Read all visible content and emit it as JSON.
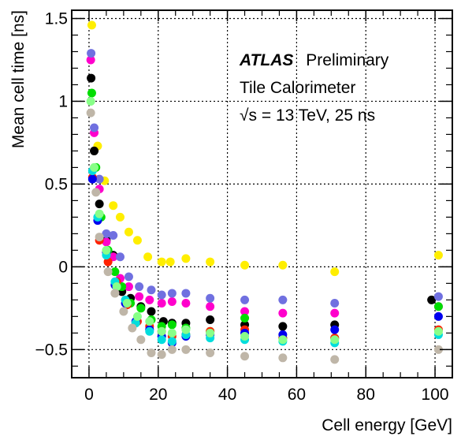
{
  "chart_data": {
    "type": "scatter",
    "xlabel": "Cell energy [GeV]",
    "ylabel": "Mean cell time [ns]",
    "xlim": [
      -5,
      105
    ],
    "ylim": [
      -0.67,
      1.55
    ],
    "x_ticks": [
      "0",
      "20",
      "40",
      "60",
      "80",
      "100"
    ],
    "y_ticks": [
      "−0.5",
      "0",
      "0.5",
      "1",
      "1.5"
    ],
    "grid": true,
    "annotations": {
      "experiment": "ATLAS",
      "status": "Preliminary",
      "detector": "Tile Calorimeter",
      "energy_prefix": "√s",
      "energy_rest": " = 13 TeV, 25 ns"
    },
    "series": [
      {
        "color": "#ffee00",
        "points": [
          [
            0.8,
            1.46
          ],
          [
            2.5,
            0.73
          ],
          [
            4.5,
            0.52
          ],
          [
            7,
            0.37
          ],
          [
            9,
            0.3
          ],
          [
            11.5,
            0.21
          ],
          [
            14,
            0.16
          ],
          [
            17,
            0.06
          ],
          [
            21,
            0.03
          ],
          [
            23.5,
            0.03
          ],
          [
            28,
            0.05
          ],
          [
            35,
            0.03
          ],
          [
            45,
            0.01
          ],
          [
            56,
            0.01
          ],
          [
            71,
            -0.03
          ],
          [
            101,
            0.07
          ]
        ]
      },
      {
        "color": "#000000",
        "points": [
          [
            0.6,
            1.14
          ],
          [
            1.5,
            0.7
          ],
          [
            3,
            0.38
          ],
          [
            5,
            0.16
          ],
          [
            7,
            0.07
          ],
          [
            9.5,
            -0.15
          ],
          [
            12,
            -0.19
          ],
          [
            15,
            -0.24
          ],
          [
            18,
            -0.27
          ],
          [
            21.5,
            -0.33
          ],
          [
            24,
            -0.34
          ],
          [
            28,
            -0.34
          ],
          [
            35,
            -0.32
          ],
          [
            45,
            -0.35
          ],
          [
            56,
            -0.36
          ],
          [
            71,
            -0.35
          ],
          [
            99,
            -0.2
          ]
        ]
      },
      {
        "color": "#ff00cc",
        "points": [
          [
            0.5,
            1.25
          ],
          [
            1.5,
            0.81
          ],
          [
            3,
            0.47
          ],
          [
            5,
            0.15
          ],
          [
            7,
            0.06
          ],
          [
            9,
            -0.07
          ],
          [
            11.5,
            -0.12
          ],
          [
            14.5,
            -0.18
          ],
          [
            17.5,
            -0.2
          ],
          [
            21,
            -0.22
          ],
          [
            24,
            -0.21
          ],
          [
            28,
            -0.22
          ],
          [
            35,
            -0.24
          ],
          [
            45,
            -0.27
          ],
          [
            56,
            -0.28
          ],
          [
            71,
            -0.28
          ],
          [
            101,
            -0.24
          ]
        ]
      },
      {
        "color": "#7070e0",
        "points": [
          [
            0.6,
            1.29
          ],
          [
            1.5,
            0.84
          ],
          [
            3,
            0.53
          ],
          [
            5,
            0.2
          ],
          [
            7,
            0.19
          ],
          [
            9,
            0.06
          ],
          [
            11.5,
            -0.06
          ],
          [
            14.5,
            -0.12
          ],
          [
            18,
            -0.14
          ],
          [
            21,
            -0.17
          ],
          [
            24,
            -0.16
          ],
          [
            28,
            -0.16
          ],
          [
            35,
            -0.19
          ],
          [
            45,
            -0.2
          ],
          [
            56,
            -0.2
          ],
          [
            71,
            -0.22
          ],
          [
            101,
            -0.18
          ]
        ]
      },
      {
        "color": "#00dd00",
        "points": [
          [
            0.8,
            1.05
          ],
          [
            2,
            0.6
          ],
          [
            3.5,
            0.3
          ],
          [
            5.5,
            0.1
          ],
          [
            7.5,
            -0.03
          ],
          [
            9.5,
            -0.12
          ],
          [
            12,
            -0.22
          ],
          [
            15,
            -0.25
          ],
          [
            18,
            -0.32
          ],
          [
            21,
            -0.36
          ],
          [
            24,
            -0.35
          ],
          [
            28,
            -0.37
          ],
          [
            35,
            -0.39
          ],
          [
            45,
            -0.31
          ],
          [
            56,
            -0.43
          ],
          [
            71,
            -0.43
          ],
          [
            101,
            -0.24
          ]
        ]
      },
      {
        "color": "#ff2200",
        "points": [
          [
            1,
            0.54
          ],
          [
            3,
            0.16
          ],
          [
            5.5,
            0.03
          ],
          [
            8,
            -0.09
          ],
          [
            11,
            -0.23
          ],
          [
            14,
            -0.33
          ],
          [
            17.5,
            -0.36
          ],
          [
            21,
            -0.39
          ],
          [
            24,
            -0.42
          ],
          [
            28,
            -0.41
          ],
          [
            35,
            -0.39
          ],
          [
            45,
            -0.38
          ],
          [
            56,
            -0.43
          ],
          [
            71,
            -0.43
          ],
          [
            101,
            -0.38
          ]
        ]
      },
      {
        "color": "#0000ee",
        "points": [
          [
            1,
            0.53
          ],
          [
            2.5,
            0.28
          ],
          [
            5,
            0.09
          ],
          [
            7.5,
            -0.11
          ],
          [
            10.5,
            -0.22
          ],
          [
            13.5,
            -0.33
          ],
          [
            17.5,
            -0.38
          ],
          [
            21,
            -0.42
          ],
          [
            24,
            -0.46
          ],
          [
            28,
            -0.42
          ],
          [
            35,
            -0.41
          ],
          [
            45,
            -0.4
          ],
          [
            56,
            -0.41
          ],
          [
            71,
            -0.38
          ],
          [
            101,
            -0.3
          ]
        ]
      },
      {
        "color": "#00dddd",
        "points": [
          [
            1,
            0.58
          ],
          [
            2.5,
            0.3
          ],
          [
            5,
            0.07
          ],
          [
            7.5,
            -0.09
          ],
          [
            10.5,
            -0.2
          ],
          [
            13.5,
            -0.34
          ],
          [
            17.5,
            -0.39
          ],
          [
            21,
            -0.44
          ],
          [
            24,
            -0.45
          ],
          [
            28,
            -0.41
          ],
          [
            35,
            -0.43
          ],
          [
            45,
            -0.44
          ],
          [
            56,
            -0.45
          ],
          [
            71,
            -0.46
          ],
          [
            101,
            -0.41
          ]
        ]
      },
      {
        "color": "#88ff88",
        "points": [
          [
            0.5,
            1.0
          ],
          [
            1.5,
            0.6
          ],
          [
            3,
            0.32
          ],
          [
            5,
            0.1
          ],
          [
            8,
            -0.12
          ],
          [
            11,
            -0.22
          ],
          [
            14,
            -0.3
          ],
          [
            17.5,
            -0.33
          ],
          [
            21,
            -0.39
          ],
          [
            24,
            -0.4
          ],
          [
            28,
            -0.38
          ],
          [
            35,
            -0.4
          ],
          [
            45,
            -0.42
          ],
          [
            56,
            -0.44
          ],
          [
            71,
            -0.44
          ],
          [
            101,
            -0.39
          ]
        ]
      },
      {
        "color": "#bfb6a8",
        "points": [
          [
            0.5,
            0.93
          ],
          [
            2,
            0.45
          ],
          [
            3,
            0.18
          ],
          [
            5.5,
            -0.03
          ],
          [
            7.5,
            -0.16
          ],
          [
            10,
            -0.27
          ],
          [
            12.5,
            -0.37
          ],
          [
            15,
            -0.44
          ],
          [
            18,
            -0.52
          ],
          [
            21,
            -0.53
          ],
          [
            24,
            -0.5
          ],
          [
            28,
            -0.5
          ],
          [
            35,
            -0.52
          ],
          [
            45,
            -0.54
          ],
          [
            56,
            -0.55
          ],
          [
            71,
            -0.56
          ],
          [
            101,
            -0.5
          ]
        ]
      }
    ]
  }
}
